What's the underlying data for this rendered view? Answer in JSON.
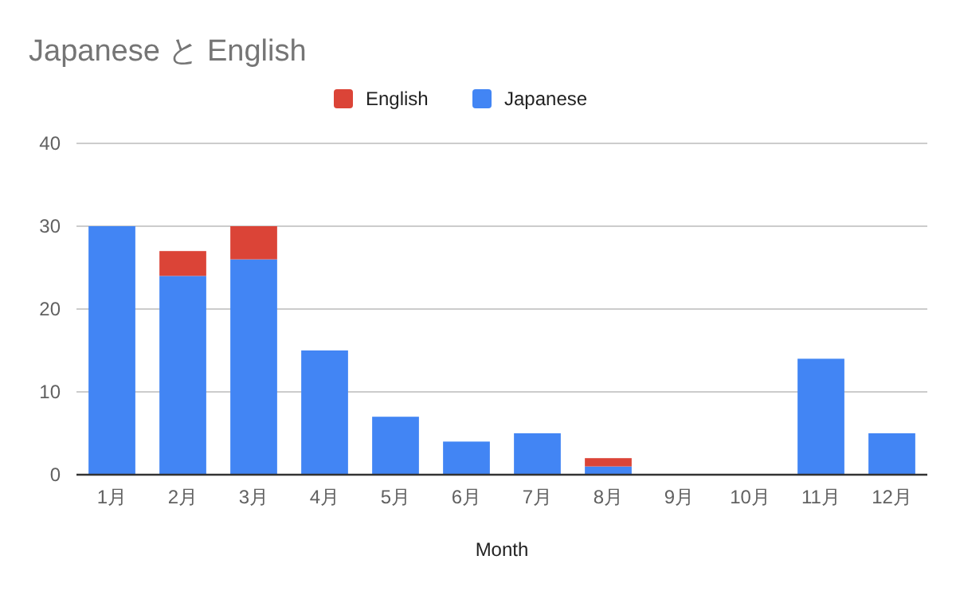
{
  "chart_data": {
    "type": "bar",
    "title": "Japanese と English",
    "xlabel": "Month",
    "stacked": true,
    "legend": "top",
    "grid": "y",
    "categories": [
      "1月",
      "2月",
      "3月",
      "4月",
      "5月",
      "6月",
      "7月",
      "8月",
      "9月",
      "10月",
      "11月",
      "12月"
    ],
    "ylim": [
      0,
      40
    ],
    "yticks": [
      0,
      10,
      20,
      30,
      40
    ],
    "series": [
      {
        "name": "Japanese",
        "color": "#4285f4",
        "values": [
          30,
          24,
          26,
          15,
          7,
          4,
          5,
          1,
          0,
          0,
          14,
          5
        ]
      },
      {
        "name": "English",
        "color": "#db4437",
        "values": [
          0,
          3,
          4,
          0,
          0,
          0,
          0,
          1,
          0,
          0,
          0,
          0
        ]
      }
    ]
  }
}
